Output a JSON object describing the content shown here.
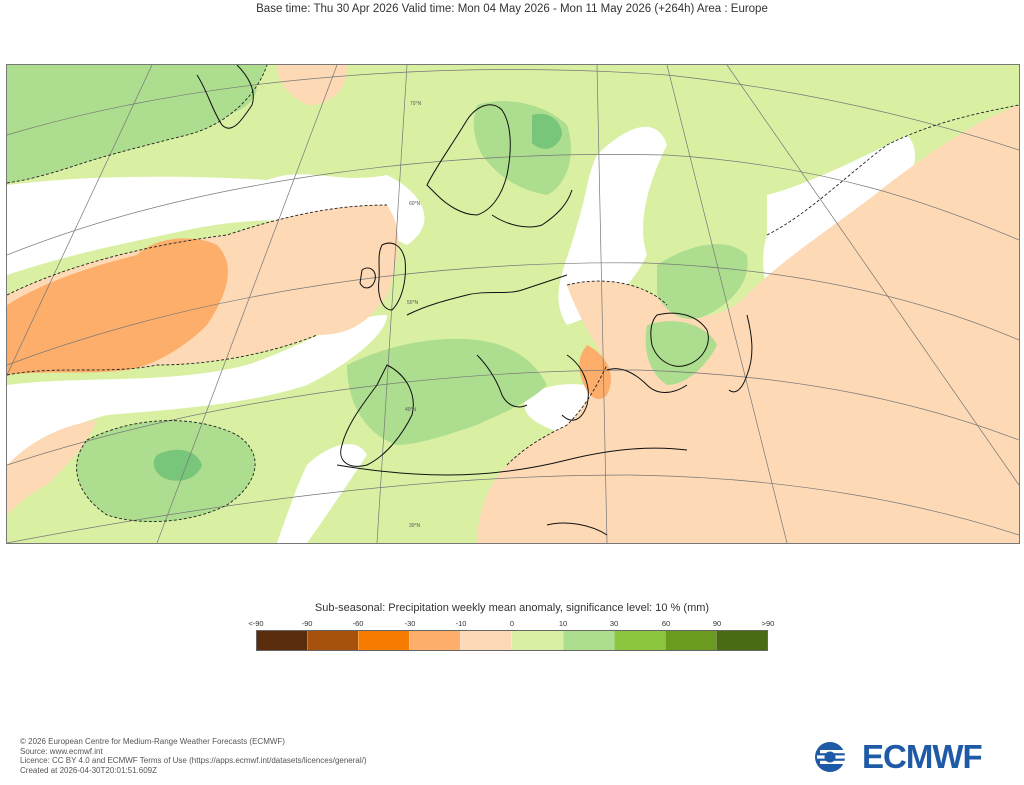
{
  "header": {
    "title": "Base time: Thu 30 Apr 2026 Valid time: Mon 04 May 2026 - Mon 11 May 2026 (+264h) Area : Europe"
  },
  "map": {
    "colors": {
      "sea_neutral": "#d9f0a3",
      "wet_light": "#addd8e",
      "wet_mid": "#78c679",
      "dry_light": "#fdd9b5",
      "dry_mid": "#fdae6b",
      "white_band": "#ffffff",
      "coast": "#111111",
      "graticule": "#777777"
    },
    "latitude_labels": [
      "70°N",
      "60°N",
      "50°N",
      "40°N",
      "30°N"
    ]
  },
  "legend": {
    "title": "Sub-seasonal: Precipitation weekly mean anomaly, significance level: 10 % (mm)",
    "labels": [
      "<-90",
      "-90",
      "-60",
      "-30",
      "-10",
      "0",
      "10",
      "30",
      "60",
      "90",
      ">90"
    ],
    "colors": [
      "#5a2d0c",
      "#a6520c",
      "#f57c00",
      "#fdae6b",
      "#fdd9b5",
      "#d9f0a3",
      "#addd8e",
      "#8cc63f",
      "#6a9a1f",
      "#4a6b12"
    ]
  },
  "footer": {
    "lines": [
      "© 2026 European Centre for Medium-Range Weather Forecasts (ECMWF)",
      "Source: www.ecmwf.int",
      "Licence: CC BY 4.0 and ECMWF Terms of Use (https://apps.ecmwf.int/datasets/licences/general/)",
      "Created at 2026-04-30T20:01:51.609Z"
    ]
  },
  "logo": {
    "text": "ECMWF",
    "color": "#1f5aa6"
  }
}
